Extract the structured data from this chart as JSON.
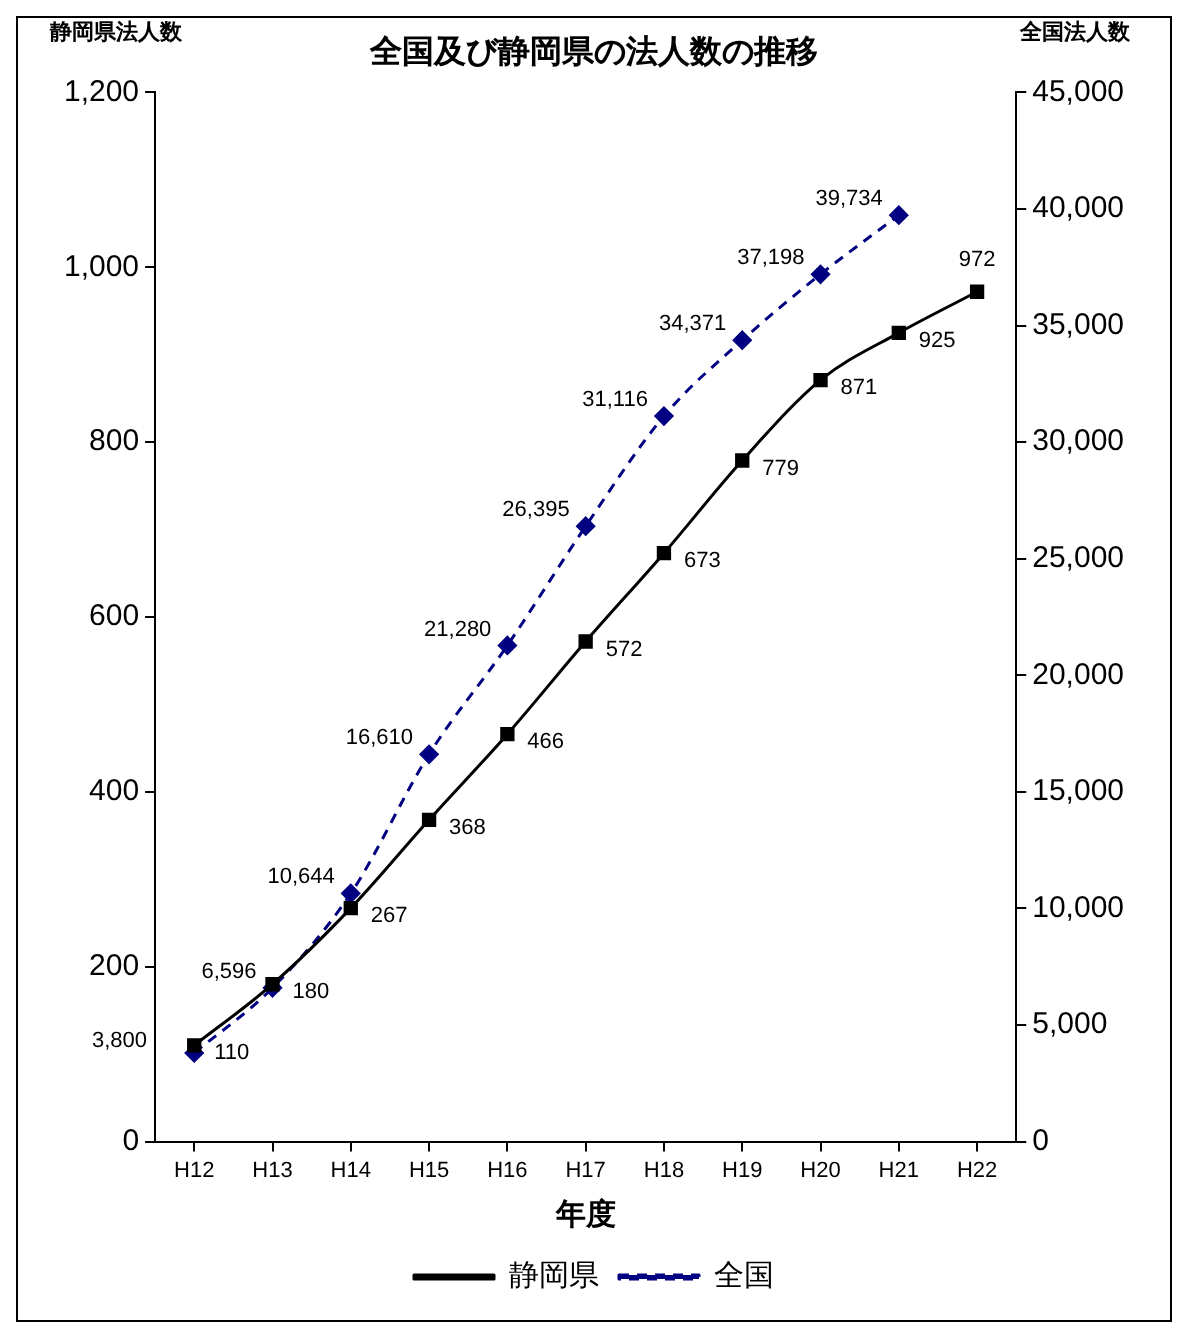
{
  "chart_data": {
    "type": "line",
    "title": "全国及び静岡県の法人数の推移",
    "xlabel": "年度",
    "ylabel": "静岡県法人数",
    "y2label": "全国法人数",
    "categories": [
      "H12",
      "H13",
      "H14",
      "H15",
      "H16",
      "H17",
      "H18",
      "H19",
      "H20",
      "H21",
      "H22"
    ],
    "series": [
      {
        "name": "静岡県",
        "color": "#000000",
        "marker": "square",
        "line_style": "solid",
        "values": [
          110,
          180,
          267,
          368,
          466,
          572,
          673,
          779,
          871,
          925,
          972
        ],
        "value_labels": [
          "110",
          "180",
          "267",
          "368",
          "466",
          "572",
          "673",
          "779",
          "871",
          "925",
          "972"
        ]
      },
      {
        "name": "全国",
        "color": "#000080",
        "marker": "diamond",
        "line_style": "dashed",
        "axis": "y2",
        "values": [
          3800,
          6596,
          10644,
          16610,
          21280,
          26395,
          31116,
          34371,
          37198,
          39734,
          null
        ],
        "value_labels": [
          "3,800",
          "6,596",
          "10,644",
          "16,610",
          "21,280",
          "26,395",
          "31,116",
          "34,371",
          "37,198",
          "39,734",
          null
        ]
      }
    ],
    "ylim": [
      0,
      1200
    ],
    "yticks": [
      0,
      200,
      400,
      600,
      800,
      {
        "value": 1000,
        "label": "1,000"
      },
      {
        "value": 1200,
        "label": "1,200"
      }
    ],
    "y2lim": [
      0,
      45000
    ],
    "y2ticks": [
      0,
      {
        "value": 5000,
        "label": "5,000"
      },
      {
        "value": 10000,
        "label": "10,000"
      },
      {
        "value": 15000,
        "label": "15,000"
      },
      {
        "value": 20000,
        "label": "20,000"
      },
      {
        "value": 25000,
        "label": "25,000"
      },
      {
        "value": 30000,
        "label": "30,000"
      },
      {
        "value": 35000,
        "label": "35,000"
      },
      {
        "value": 40000,
        "label": "40,000"
      },
      {
        "value": 45000,
        "label": "45,000"
      }
    ],
    "legend": "bottom"
  }
}
